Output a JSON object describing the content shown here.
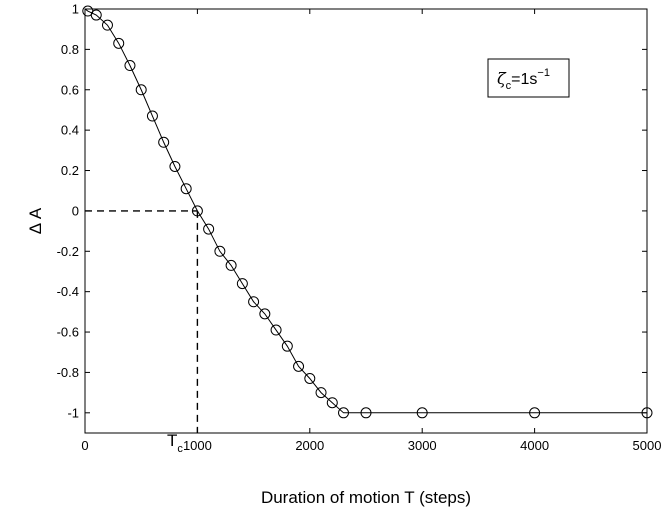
{
  "chart_data": {
    "type": "line",
    "title": "",
    "xlabel": "Duration of motion T (steps)",
    "ylabel": "Δ A",
    "xlim": [
      0,
      5000
    ],
    "ylim": [
      -1.1,
      1.0
    ],
    "grid": false,
    "xticks": [
      0,
      1000,
      2000,
      3000,
      4000,
      5000
    ],
    "xtick_labels": [
      "0",
      "1000",
      "2000",
      "3000",
      "4000",
      "5000"
    ],
    "yticks": [
      1,
      0.8,
      0.6,
      0.4,
      0.2,
      0,
      -0.2,
      -0.4,
      -0.6,
      -0.8,
      -1
    ],
    "ytick_labels": [
      "1",
      "0.8",
      "0.6",
      "0.4",
      "0.2",
      "0",
      "-0.2",
      "-0.4",
      "-0.6",
      "-0.8",
      "-1"
    ],
    "series": [
      {
        "marker": "circle",
        "line": "solid",
        "color": "#000000",
        "x": [
          25,
          100,
          200,
          300,
          400,
          500,
          600,
          700,
          800,
          900,
          1000,
          1100,
          1200,
          1300,
          1400,
          1500,
          1600,
          1700,
          1800,
          1900,
          2000,
          2100,
          2200,
          2300,
          2500,
          3000,
          4000,
          5000
        ],
        "y": [
          0.99,
          0.97,
          0.92,
          0.83,
          0.72,
          0.6,
          0.47,
          0.34,
          0.22,
          0.11,
          0.0,
          -0.09,
          -0.2,
          -0.27,
          -0.36,
          -0.45,
          -0.51,
          -0.59,
          -0.67,
          -0.77,
          -0.83,
          -0.9,
          -0.95,
          -1.0,
          -1.0,
          -1.0,
          -1.0,
          -1.0
        ]
      }
    ],
    "reference": {
      "x": 1000,
      "y": 0,
      "style": "dashed"
    },
    "annotation": {
      "text": "T",
      "subscript": "c"
    },
    "legend_box": {
      "position": "top-right",
      "symbol": "ζ",
      "subscript": "c",
      "equals_value": "=1s",
      "superscript": "−1"
    }
  }
}
